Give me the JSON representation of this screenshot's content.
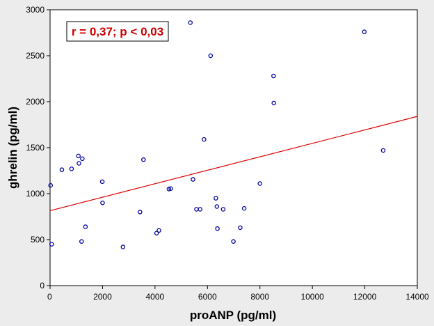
{
  "chart_data": {
    "type": "scatter",
    "xlabel": "proANP (pg/ml)",
    "ylabel": "ghrelin (pg/ml)",
    "xlim": [
      0,
      14000
    ],
    "ylim": [
      0,
      3000
    ],
    "xticks": [
      0,
      2000,
      4000,
      6000,
      8000,
      10000,
      12000,
      14000
    ],
    "yticks": [
      0,
      500,
      1000,
      1500,
      2000,
      2500,
      3000
    ],
    "annotation": "r = 0,37; p < 0,03",
    "grid": false,
    "marker_color": "#0000a0",
    "line_color": "#e00000",
    "points": [
      {
        "x": 20,
        "y": 1090
      },
      {
        "x": 60,
        "y": 450
      },
      {
        "x": 450,
        "y": 1260
      },
      {
        "x": 820,
        "y": 1270
      },
      {
        "x": 1080,
        "y": 1410
      },
      {
        "x": 1100,
        "y": 1330
      },
      {
        "x": 1200,
        "y": 480
      },
      {
        "x": 1230,
        "y": 1380
      },
      {
        "x": 1350,
        "y": 640
      },
      {
        "x": 1990,
        "y": 1130
      },
      {
        "x": 2000,
        "y": 900
      },
      {
        "x": 2780,
        "y": 420
      },
      {
        "x": 3430,
        "y": 800
      },
      {
        "x": 3560,
        "y": 1370
      },
      {
        "x": 4060,
        "y": 570
      },
      {
        "x": 4150,
        "y": 600
      },
      {
        "x": 4530,
        "y": 1050
      },
      {
        "x": 4600,
        "y": 1055
      },
      {
        "x": 5350,
        "y": 2860
      },
      {
        "x": 5450,
        "y": 1155
      },
      {
        "x": 5580,
        "y": 830
      },
      {
        "x": 5720,
        "y": 830
      },
      {
        "x": 5870,
        "y": 1590
      },
      {
        "x": 6120,
        "y": 2500
      },
      {
        "x": 6320,
        "y": 950
      },
      {
        "x": 6360,
        "y": 860
      },
      {
        "x": 6380,
        "y": 620
      },
      {
        "x": 6600,
        "y": 830
      },
      {
        "x": 6990,
        "y": 480
      },
      {
        "x": 7250,
        "y": 630
      },
      {
        "x": 7400,
        "y": 840
      },
      {
        "x": 8000,
        "y": 1110
      },
      {
        "x": 8520,
        "y": 2280
      },
      {
        "x": 8530,
        "y": 1985
      },
      {
        "x": 11980,
        "y": 2760
      },
      {
        "x": 12700,
        "y": 1470
      }
    ],
    "fit_line": {
      "x": [
        0,
        14000
      ],
      "y": [
        815,
        1840
      ]
    }
  }
}
